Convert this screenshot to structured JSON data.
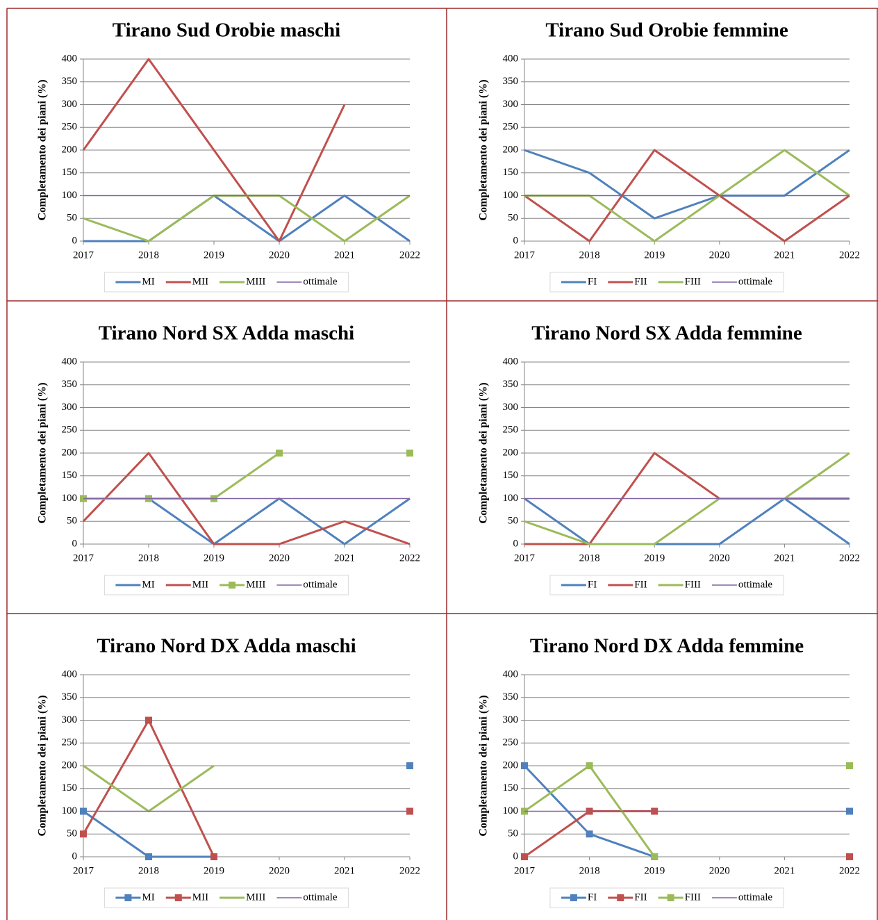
{
  "chart_data": [
    {
      "type": "line",
      "title": "Tirano Sud Orobie maschi",
      "y_label": "Completamento dei piani (%)",
      "categories": [
        "2017",
        "2018",
        "2019",
        "2020",
        "2021",
        "2022"
      ],
      "ylim": [
        0,
        400
      ],
      "yticks": [
        0,
        50,
        100,
        150,
        200,
        250,
        300,
        350,
        400
      ],
      "grid": true,
      "series": [
        {
          "name": "MI",
          "color": "#4f81bd",
          "line_width": 3,
          "markers": false,
          "values": [
            0,
            0,
            100,
            0,
            100,
            0
          ]
        },
        {
          "name": "MII",
          "color": "#c0504d",
          "line_width": 3,
          "markers": false,
          "values": [
            200,
            400,
            200,
            0,
            300,
            null
          ]
        },
        {
          "name": "MIII",
          "color": "#9bbb59",
          "line_width": 3,
          "markers": false,
          "values": [
            50,
            0,
            100,
            100,
            0,
            100
          ]
        },
        {
          "name": "ottimale",
          "color": "#8064a2",
          "line_width": 1.5,
          "markers": false,
          "values": [
            100,
            100,
            100,
            100,
            100,
            100
          ]
        }
      ]
    },
    {
      "type": "line",
      "title": "Tirano Sud Orobie femmine",
      "y_label": "Completamento dei piani (%)",
      "categories": [
        "2017",
        "2018",
        "2019",
        "2020",
        "2021",
        "2022"
      ],
      "ylim": [
        0,
        400
      ],
      "yticks": [
        0,
        50,
        100,
        150,
        200,
        250,
        300,
        350,
        400
      ],
      "grid": true,
      "series": [
        {
          "name": "FI",
          "color": "#4f81bd",
          "line_width": 3,
          "markers": false,
          "values": [
            200,
            150,
            50,
            100,
            100,
            200
          ]
        },
        {
          "name": "FII",
          "color": "#c0504d",
          "line_width": 3,
          "markers": false,
          "values": [
            100,
            0,
            200,
            100,
            0,
            100
          ]
        },
        {
          "name": "FIII",
          "color": "#9bbb59",
          "line_width": 3,
          "markers": false,
          "values": [
            100,
            100,
            0,
            100,
            200,
            100
          ]
        },
        {
          "name": "ottimale",
          "color": "#8064a2",
          "line_width": 1.5,
          "markers": false,
          "values": [
            100,
            100,
            100,
            100,
            100,
            100
          ]
        }
      ]
    },
    {
      "type": "line",
      "title": "Tirano Nord SX Adda maschi",
      "y_label": "Completamento dei piani (%)",
      "categories": [
        "2017",
        "2018",
        "2019",
        "2020",
        "2021",
        "2022"
      ],
      "ylim": [
        0,
        400
      ],
      "yticks": [
        0,
        50,
        100,
        150,
        200,
        250,
        300,
        350,
        400
      ],
      "grid": true,
      "series": [
        {
          "name": "MI",
          "color": "#4f81bd",
          "line_width": 3,
          "markers": false,
          "values": [
            100,
            100,
            0,
            100,
            0,
            100
          ]
        },
        {
          "name": "MII",
          "color": "#c0504d",
          "line_width": 3,
          "markers": false,
          "values": [
            50,
            200,
            0,
            0,
            50,
            0
          ]
        },
        {
          "name": "MIII",
          "color": "#9bbb59",
          "line_width": 3,
          "markers": true,
          "values": [
            100,
            100,
            100,
            200,
            null,
            200
          ]
        },
        {
          "name": "ottimale",
          "color": "#8064a2",
          "line_width": 1.5,
          "markers": false,
          "values": [
            100,
            100,
            100,
            100,
            100,
            100
          ]
        }
      ]
    },
    {
      "type": "line",
      "title": "Tirano Nord SX Adda femmine",
      "y_label": "Completamento dei piani (%)",
      "categories": [
        "2017",
        "2018",
        "2019",
        "2020",
        "2021",
        "2022"
      ],
      "ylim": [
        0,
        400
      ],
      "yticks": [
        0,
        50,
        100,
        150,
        200,
        250,
        300,
        350,
        400
      ],
      "grid": true,
      "series": [
        {
          "name": "FI",
          "color": "#4f81bd",
          "line_width": 3,
          "markers": false,
          "values": [
            100,
            0,
            0,
            0,
            100,
            0
          ]
        },
        {
          "name": "FII",
          "color": "#c0504d",
          "line_width": 3,
          "markers": false,
          "values": [
            0,
            0,
            200,
            100,
            100,
            100
          ]
        },
        {
          "name": "FIII",
          "color": "#9bbb59",
          "line_width": 3,
          "markers": false,
          "values": [
            50,
            0,
            0,
            100,
            100,
            200
          ]
        },
        {
          "name": "ottimale",
          "color": "#8064a2",
          "line_width": 1.5,
          "markers": false,
          "values": [
            100,
            100,
            100,
            100,
            100,
            100
          ]
        }
      ]
    },
    {
      "type": "line",
      "title": "Tirano Nord DX Adda maschi",
      "y_label": "Completamento dei piani (%)",
      "categories": [
        "2017",
        "2018",
        "2019",
        "2020",
        "2021",
        "2022"
      ],
      "ylim": [
        0,
        400
      ],
      "yticks": [
        0,
        50,
        100,
        150,
        200,
        250,
        300,
        350,
        400
      ],
      "grid": true,
      "series": [
        {
          "name": "MI",
          "color": "#4f81bd",
          "line_width": 3,
          "markers": true,
          "values": [
            100,
            0,
            0,
            null,
            null,
            200
          ]
        },
        {
          "name": "MII",
          "color": "#c0504d",
          "line_width": 3,
          "markers": true,
          "values": [
            50,
            300,
            0,
            null,
            null,
            100
          ]
        },
        {
          "name": "MIII",
          "color": "#9bbb59",
          "line_width": 3,
          "markers": false,
          "values": [
            200,
            100,
            200,
            null,
            null,
            null
          ]
        },
        {
          "name": "ottimale",
          "color": "#8064a2",
          "line_width": 1.5,
          "markers": false,
          "values": [
            100,
            100,
            100,
            100,
            100,
            100
          ]
        }
      ]
    },
    {
      "type": "line",
      "title": "Tirano Nord DX Adda femmine",
      "y_label": "Completamento dei piani (%)",
      "categories": [
        "2017",
        "2018",
        "2019",
        "2020",
        "2021",
        "2022"
      ],
      "ylim": [
        0,
        400
      ],
      "yticks": [
        0,
        50,
        100,
        150,
        200,
        250,
        300,
        350,
        400
      ],
      "grid": true,
      "series": [
        {
          "name": "FI",
          "color": "#4f81bd",
          "line_width": 3,
          "markers": true,
          "values": [
            200,
            50,
            0,
            null,
            null,
            100
          ]
        },
        {
          "name": "FII",
          "color": "#c0504d",
          "line_width": 3,
          "markers": true,
          "values": [
            0,
            100,
            100,
            null,
            null,
            0
          ]
        },
        {
          "name": "FIII",
          "color": "#9bbb59",
          "line_width": 3,
          "markers": true,
          "values": [
            100,
            200,
            0,
            null,
            null,
            200
          ]
        },
        {
          "name": "ottimale",
          "color": "#8064a2",
          "line_width": 1.5,
          "markers": false,
          "values": [
            100,
            100,
            100,
            100,
            100,
            100
          ]
        }
      ]
    }
  ]
}
